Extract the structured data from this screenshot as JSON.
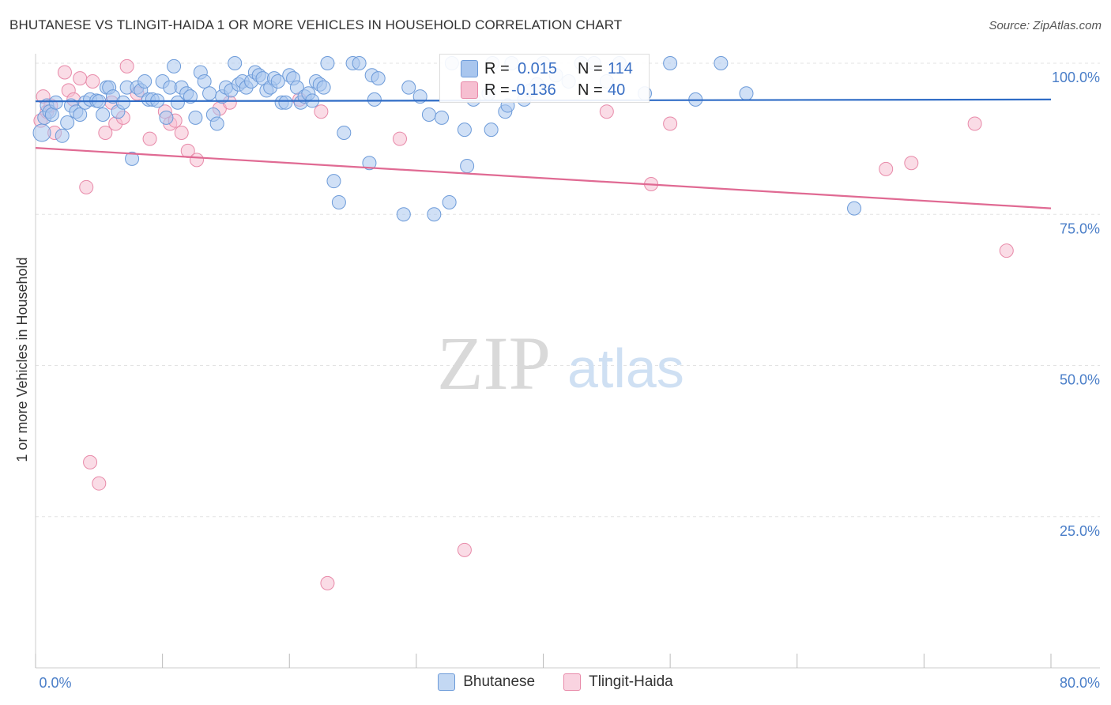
{
  "title": "BHUTANESE VS TLINGIT-HAIDA 1 OR MORE VEHICLES IN HOUSEHOLD CORRELATION CHART",
  "source": "Source: ZipAtlas.com",
  "watermark": {
    "zip": "ZIP",
    "atlas": "atlas"
  },
  "colors": {
    "blue_fill": "#a9c6ee",
    "blue_stroke": "#6d9bd9",
    "blue_line": "#2f6cc6",
    "pink_fill": "#f6bfd1",
    "pink_stroke": "#e88aa9",
    "pink_line": "#e06a93",
    "tick_label": "#4a7ec8",
    "grid": "#e3e3e3"
  },
  "stats": {
    "r_label": "R =",
    "n_label": "N =",
    "rows": [
      {
        "r": "0.015",
        "n": "114"
      },
      {
        "r": "-0.136",
        "n": "40"
      }
    ]
  },
  "legend": [
    {
      "label": "Bhutanese"
    },
    {
      "label": "Tlingit-Haida"
    }
  ],
  "chart_data": {
    "type": "scatter",
    "title": "BHUTANESE VS TLINGIT-HAIDA 1 OR MORE VEHICLES IN HOUSEHOLD CORRELATION CHART",
    "xlabel": "",
    "ylabel": "1 or more Vehicles in Household",
    "xlim": [
      0,
      80
    ],
    "ylim": [
      0,
      100
    ],
    "x_tick_labels": [
      "0.0%",
      "80.0%"
    ],
    "y_ticks": [
      25,
      50,
      75,
      100
    ],
    "y_tick_labels": [
      "25.0%",
      "50.0%",
      "75.0%",
      "100.0%"
    ],
    "grid": true,
    "series": [
      {
        "name": "Bhutanese",
        "trend": {
          "x": [
            0,
            80
          ],
          "y": [
            93.7,
            94.0
          ]
        },
        "points": [
          [
            0.5,
            88.5
          ],
          [
            0.7,
            91.0
          ],
          [
            0.9,
            93.0
          ],
          [
            1.1,
            92.0
          ],
          [
            1.3,
            91.5
          ],
          [
            1.6,
            93.5
          ],
          [
            2.1,
            88.0
          ],
          [
            2.5,
            90.2
          ],
          [
            2.8,
            93.0
          ],
          [
            3.2,
            92.0
          ],
          [
            3.5,
            91.5
          ],
          [
            3.9,
            93.5
          ],
          [
            4.3,
            94.0
          ],
          [
            4.8,
            93.8
          ],
          [
            5.0,
            93.7
          ],
          [
            5.3,
            91.5
          ],
          [
            5.6,
            96.0
          ],
          [
            5.8,
            96.0
          ],
          [
            6.1,
            94.5
          ],
          [
            6.5,
            92.0
          ],
          [
            6.9,
            93.5
          ],
          [
            7.2,
            96.0
          ],
          [
            7.6,
            84.2
          ],
          [
            8.0,
            96.0
          ],
          [
            8.3,
            95.5
          ],
          [
            8.6,
            97.0
          ],
          [
            8.9,
            94.0
          ],
          [
            9.2,
            94.0
          ],
          [
            9.6,
            93.8
          ],
          [
            10.0,
            97.0
          ],
          [
            10.3,
            91.0
          ],
          [
            10.6,
            96.0
          ],
          [
            10.9,
            99.5
          ],
          [
            11.2,
            93.5
          ],
          [
            11.5,
            96.0
          ],
          [
            11.9,
            95.0
          ],
          [
            12.2,
            94.5
          ],
          [
            12.6,
            91.0
          ],
          [
            13.0,
            98.5
          ],
          [
            13.3,
            97.0
          ],
          [
            13.7,
            95.0
          ],
          [
            14.0,
            91.5
          ],
          [
            14.3,
            90.0
          ],
          [
            14.7,
            94.5
          ],
          [
            15.0,
            96.0
          ],
          [
            15.4,
            95.5
          ],
          [
            15.7,
            100.0
          ],
          [
            16.0,
            96.5
          ],
          [
            16.3,
            97.0
          ],
          [
            16.6,
            96.0
          ],
          [
            17.0,
            97.0
          ],
          [
            17.3,
            98.5
          ],
          [
            17.6,
            98.0
          ],
          [
            17.9,
            97.5
          ],
          [
            18.2,
            95.5
          ],
          [
            18.5,
            96.0
          ],
          [
            18.8,
            97.5
          ],
          [
            19.1,
            97.0
          ],
          [
            19.4,
            93.5
          ],
          [
            19.7,
            93.5
          ],
          [
            20.0,
            98.0
          ],
          [
            20.3,
            97.5
          ],
          [
            20.6,
            96.0
          ],
          [
            20.9,
            93.5
          ],
          [
            21.2,
            94.5
          ],
          [
            21.5,
            95.0
          ],
          [
            21.8,
            93.8
          ],
          [
            22.1,
            97.0
          ],
          [
            22.4,
            96.5
          ],
          [
            22.7,
            96.0
          ],
          [
            23.0,
            100.0
          ],
          [
            23.5,
            80.5
          ],
          [
            23.9,
            77.0
          ],
          [
            24.3,
            88.5
          ],
          [
            25.0,
            100.0
          ],
          [
            25.5,
            100.0
          ],
          [
            26.3,
            83.5
          ],
          [
            26.5,
            98.0
          ],
          [
            26.7,
            94.0
          ],
          [
            27.0,
            97.5
          ],
          [
            29.0,
            75.0
          ],
          [
            29.4,
            96.0
          ],
          [
            30.3,
            94.5
          ],
          [
            31.0,
            91.5
          ],
          [
            31.4,
            75.0
          ],
          [
            32.0,
            91.0
          ],
          [
            32.6,
            77.0
          ],
          [
            32.8,
            100.0
          ],
          [
            33.8,
            89.0
          ],
          [
            34.0,
            83.0
          ],
          [
            34.5,
            94.0
          ],
          [
            35.7,
            95.0
          ],
          [
            35.9,
            89.0
          ],
          [
            37.0,
            92.0
          ],
          [
            37.2,
            93.0
          ],
          [
            38.5,
            94.0
          ],
          [
            39.0,
            95.5
          ],
          [
            40.0,
            100.0
          ],
          [
            41.0,
            98.0
          ],
          [
            42.0,
            97.0
          ],
          [
            44.0,
            100.0
          ],
          [
            46.0,
            100.0
          ],
          [
            48.0,
            95.0
          ],
          [
            50.0,
            100.0
          ],
          [
            52.0,
            94.0
          ],
          [
            54.0,
            100.0
          ],
          [
            56.0,
            95.0
          ],
          [
            64.5,
            76.0
          ],
          [
            36.0,
            100.0
          ],
          [
            34.0,
            96.0
          ],
          [
            37.5,
            100.0
          ],
          [
            39.5,
            96.5
          ],
          [
            43.0,
            100.0
          ],
          [
            45.0,
            97.0
          ]
        ]
      },
      {
        "name": "Tlingit-Haida",
        "trend": {
          "x": [
            0,
            80
          ],
          "y": [
            86.0,
            76.0
          ]
        },
        "points": [
          [
            0.4,
            90.5
          ],
          [
            0.6,
            94.5
          ],
          [
            0.9,
            92.0
          ],
          [
            1.2,
            93.0
          ],
          [
            1.5,
            88.5
          ],
          [
            2.3,
            98.5
          ],
          [
            2.6,
            95.5
          ],
          [
            3.0,
            94.0
          ],
          [
            3.5,
            97.5
          ],
          [
            4.0,
            79.5
          ],
          [
            4.3,
            34.0
          ],
          [
            4.5,
            97.0
          ],
          [
            5.0,
            30.5
          ],
          [
            5.5,
            88.5
          ],
          [
            6.0,
            93.5
          ],
          [
            6.3,
            90.0
          ],
          [
            6.9,
            91.0
          ],
          [
            7.2,
            99.5
          ],
          [
            8.0,
            95.0
          ],
          [
            9.0,
            87.5
          ],
          [
            10.2,
            92.0
          ],
          [
            10.6,
            90.0
          ],
          [
            11.0,
            90.5
          ],
          [
            11.5,
            88.5
          ],
          [
            12.0,
            85.5
          ],
          [
            12.7,
            84.0
          ],
          [
            14.5,
            92.5
          ],
          [
            15.3,
            93.5
          ],
          [
            20.8,
            94.0
          ],
          [
            22.5,
            92.0
          ],
          [
            23.0,
            14.0
          ],
          [
            28.7,
            87.5
          ],
          [
            33.8,
            19.5
          ],
          [
            45.0,
            92.0
          ],
          [
            48.5,
            80.0
          ],
          [
            50.0,
            90.0
          ],
          [
            67.0,
            82.5
          ],
          [
            69.0,
            83.5
          ],
          [
            74.0,
            90.0
          ],
          [
            76.5,
            69.0
          ]
        ]
      }
    ]
  }
}
